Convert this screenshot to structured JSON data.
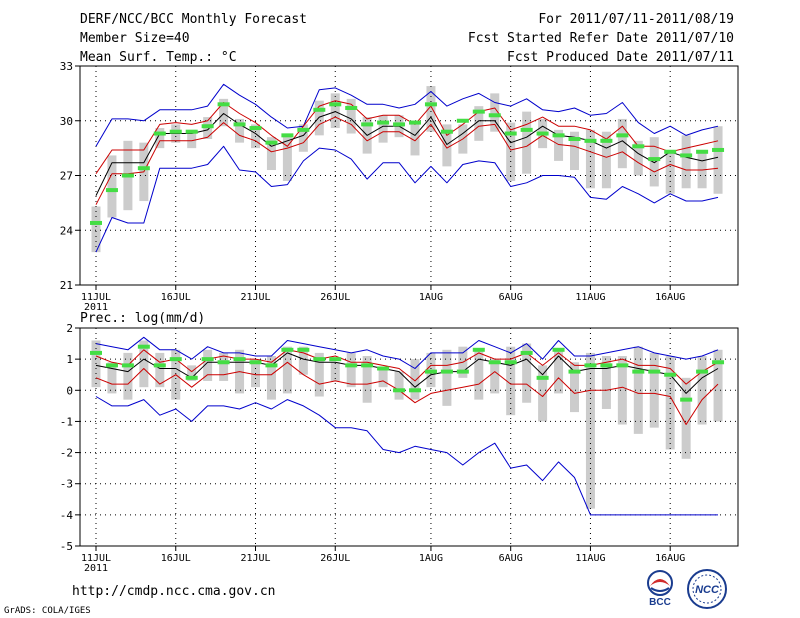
{
  "header": {
    "title": "DERF/NCC/BCC Monthly Forecast",
    "member_size": "Member Size=40",
    "variable": "Mean Surf. Temp.: °C",
    "period": "For 2011/07/11-2011/08/19",
    "fcst_started": "Fcst Started Refer Date 2011/07/10",
    "fcst_produced": "Fcst Produced Date 2011/07/11"
  },
  "footer": {
    "url": "http://cmdp.ncc.cma.gov.cn",
    "credit": "GrADS: COLA/IGES",
    "logo_left_text": "BCC",
    "logo_right_text": "NCC"
  },
  "colors": {
    "ensemble_min_max": "#0000cc",
    "percentile_band": "#cc0000",
    "ensemble_mean": "#000000",
    "ensemble_box": "#cccccc",
    "median_marker": "#44dd44"
  },
  "chart_data": [
    {
      "type": "box-line",
      "title": "Mean Surf. Temp.: °C",
      "ylim": [
        21,
        33
      ],
      "yticks": [
        21,
        24,
        27,
        30,
        33
      ],
      "ytick_labels": [
        "21",
        "24",
        "27",
        "30",
        "33"
      ],
      "xticks": [
        0,
        5,
        10,
        15,
        21,
        26,
        31,
        36
      ],
      "xtick_labels": [
        "11JUL",
        "16JUL",
        "21JUL",
        "26JUL",
        "1AUG",
        "6AUG",
        "11AUG",
        "16AUG"
      ],
      "xtick_sublabel": "2011",
      "grid": true,
      "series": [
        {
          "name": "max",
          "values": [
            28.6,
            30.1,
            30.1,
            30.0,
            30.6,
            30.6,
            30.6,
            30.8,
            32.0,
            31.4,
            30.9,
            30.2,
            29.6,
            29.7,
            31.7,
            31.8,
            31.4,
            30.9,
            30.9,
            30.7,
            30.9,
            31.6,
            30.8,
            31.2,
            31.5,
            31.0,
            30.8,
            31.2,
            30.6,
            30.5,
            30.7,
            30.3,
            30.4,
            31.0,
            29.9,
            29.3,
            29.7,
            29.2,
            29.5,
            29.7
          ]
        },
        {
          "name": "upper",
          "values": [
            27.1,
            28.4,
            28.4,
            28.4,
            29.8,
            29.9,
            29.8,
            30.0,
            31.0,
            30.4,
            29.9,
            29.2,
            28.6,
            29.7,
            30.8,
            31.1,
            30.9,
            30.1,
            30.3,
            30.3,
            29.8,
            30.8,
            29.2,
            29.8,
            30.5,
            30.7,
            29.5,
            29.8,
            30.2,
            29.7,
            29.7,
            29.5,
            29.0,
            29.7,
            28.6,
            28.6,
            28.3,
            28.5,
            28.7,
            28.9
          ]
        },
        {
          "name": "mean",
          "values": [
            25.9,
            27.7,
            27.7,
            27.7,
            29.3,
            29.3,
            29.3,
            29.5,
            30.4,
            29.8,
            29.3,
            28.6,
            28.9,
            29.2,
            30.2,
            30.5,
            30.1,
            29.2,
            29.7,
            29.7,
            29.2,
            30.2,
            28.7,
            29.3,
            30.0,
            30.0,
            28.8,
            29.1,
            29.7,
            29.2,
            29.1,
            28.9,
            28.5,
            28.9,
            28.2,
            27.7,
            28.3,
            28.0,
            27.8,
            28.0
          ]
        },
        {
          "name": "lower",
          "values": [
            25.4,
            27.1,
            27.1,
            27.2,
            28.9,
            28.9,
            28.9,
            29.1,
            29.9,
            29.2,
            28.9,
            28.3,
            28.5,
            28.8,
            29.8,
            30.2,
            29.8,
            28.9,
            29.4,
            29.4,
            28.9,
            29.8,
            28.5,
            29.0,
            29.7,
            29.8,
            28.4,
            28.6,
            29.2,
            28.7,
            28.6,
            28.3,
            28.0,
            28.3,
            27.7,
            27.2,
            27.6,
            27.3,
            27.3,
            27.4
          ]
        },
        {
          "name": "min",
          "values": [
            22.8,
            24.7,
            24.4,
            24.4,
            27.4,
            27.4,
            27.4,
            27.6,
            28.6,
            27.3,
            27.2,
            26.4,
            26.5,
            27.8,
            28.5,
            28.4,
            27.9,
            26.8,
            27.7,
            27.7,
            26.6,
            27.5,
            26.6,
            27.6,
            27.8,
            27.7,
            26.4,
            26.6,
            27.0,
            27.0,
            26.9,
            25.8,
            25.7,
            26.4,
            26.0,
            25.5,
            26.0,
            25.6,
            25.6,
            25.8
          ]
        },
        {
          "name": "box_low",
          "values": [
            22.8,
            24.7,
            25.1,
            25.6,
            28.5,
            28.8,
            28.5,
            29.0,
            29.7,
            28.8,
            28.5,
            27.3,
            26.7,
            28.3,
            29.2,
            29.6,
            29.3,
            28.2,
            28.8,
            29.1,
            28.1,
            29.4,
            27.5,
            28.2,
            28.9,
            29.4,
            26.7,
            27.1,
            28.5,
            27.8,
            27.3,
            26.3,
            26.3,
            27.4,
            27.0,
            26.4,
            26.0,
            26.3,
            26.3,
            26.0
          ]
        },
        {
          "name": "box_high",
          "values": [
            25.3,
            28.1,
            28.9,
            28.8,
            29.6,
            29.8,
            29.5,
            30.2,
            31.2,
            30.1,
            29.8,
            29.1,
            29.1,
            29.8,
            31.1,
            31.5,
            31.2,
            30.2,
            30.3,
            30.3,
            30.0,
            31.9,
            29.8,
            29.8,
            30.8,
            31.5,
            29.9,
            30.5,
            30.1,
            29.5,
            29.4,
            29.5,
            29.4,
            30.1,
            28.9,
            29.1,
            28.4,
            29.2,
            28.4,
            29.7
          ]
        },
        {
          "name": "median",
          "values": [
            24.4,
            26.2,
            27.0,
            27.4,
            29.3,
            29.4,
            29.4,
            29.7,
            30.9,
            29.8,
            29.6,
            28.8,
            29.2,
            29.5,
            30.6,
            30.9,
            30.7,
            29.8,
            29.9,
            29.8,
            29.9,
            30.9,
            29.4,
            30.0,
            30.5,
            30.3,
            29.3,
            29.5,
            29.3,
            29.2,
            29.0,
            28.9,
            28.9,
            29.2,
            28.6,
            27.9,
            28.3,
            28.1,
            28.3,
            28.4
          ]
        }
      ]
    },
    {
      "type": "box-line",
      "title": "Prec.: log(mm/d)",
      "ylim": [
        -5,
        2
      ],
      "yticks": [
        -5,
        -4,
        -3,
        -2,
        -1,
        0,
        1,
        2
      ],
      "ytick_labels": [
        "-5",
        "-4",
        "-3",
        "-2",
        "-1",
        "0",
        "1",
        "2"
      ],
      "xticks": [
        0,
        5,
        10,
        15,
        21,
        26,
        31,
        36
      ],
      "xtick_labels": [
        "11JUL",
        "16JUL",
        "21JUL",
        "26JUL",
        "1AUG",
        "6AUG",
        "11AUG",
        "16AUG"
      ],
      "xtick_sublabel": "2011",
      "grid": true,
      "series": [
        {
          "name": "max",
          "values": [
            1.5,
            1.4,
            1.3,
            1.7,
            1.3,
            1.3,
            1.0,
            1.4,
            1.2,
            1.2,
            1.1,
            1.1,
            1.6,
            1.5,
            1.4,
            1.3,
            1.2,
            1.3,
            1.1,
            1.0,
            0.7,
            1.2,
            1.2,
            1.2,
            1.6,
            1.4,
            1.2,
            1.5,
            1.0,
            1.6,
            1.1,
            1.1,
            1.2,
            1.3,
            1.4,
            1.2,
            1.1,
            1.0,
            1.1,
            1.3
          ]
        },
        {
          "name": "upper",
          "values": [
            1.1,
            0.9,
            0.8,
            1.3,
            0.9,
            1.0,
            0.6,
            1.0,
            1.1,
            1.0,
            1.0,
            0.9,
            1.3,
            1.2,
            1.0,
            1.1,
            0.9,
            0.9,
            0.8,
            0.7,
            0.3,
            0.8,
            0.8,
            0.9,
            1.2,
            1.0,
            1.0,
            1.2,
            0.8,
            1.2,
            0.8,
            0.8,
            0.9,
            1.0,
            0.8,
            0.8,
            0.7,
            0.2,
            0.6,
            0.9
          ]
        },
        {
          "name": "mean",
          "values": [
            0.8,
            0.7,
            0.6,
            1.0,
            0.7,
            0.7,
            0.4,
            0.9,
            0.9,
            0.9,
            0.9,
            0.8,
            1.2,
            1.0,
            0.9,
            0.9,
            0.8,
            0.8,
            0.7,
            0.6,
            0.1,
            0.5,
            0.6,
            0.6,
            1.0,
            0.9,
            0.8,
            1.0,
            0.5,
            1.1,
            0.6,
            0.7,
            0.7,
            0.8,
            0.7,
            0.6,
            0.5,
            -0.1,
            0.4,
            0.7
          ]
        },
        {
          "name": "lower",
          "values": [
            0.4,
            0.2,
            0.2,
            0.7,
            0.2,
            0.5,
            0.1,
            0.5,
            0.5,
            0.6,
            0.5,
            0.5,
            0.9,
            0.5,
            0.2,
            0.3,
            0.2,
            0.2,
            0.3,
            0.0,
            -0.4,
            -0.1,
            0.0,
            0.1,
            0.2,
            0.6,
            0.2,
            0.2,
            -0.2,
            0.4,
            -0.1,
            0.0,
            0.0,
            0.1,
            -0.1,
            -0.1,
            -0.2,
            -1.1,
            -0.3,
            0.2
          ]
        },
        {
          "name": "min",
          "values": [
            -0.2,
            -0.5,
            -0.5,
            -0.3,
            -0.8,
            -0.6,
            -1.0,
            -0.5,
            -0.5,
            -0.6,
            -0.4,
            -0.6,
            -0.3,
            -0.5,
            -0.8,
            -1.2,
            -1.2,
            -1.3,
            -1.9,
            -2.0,
            -1.8,
            -1.9,
            -2.0,
            -2.4,
            -2.0,
            -1.7,
            -2.5,
            -2.4,
            -2.9,
            -2.3,
            -2.8,
            -4.0,
            -4.0,
            -4.0,
            -4.0,
            -4.0,
            -4.0,
            -4.0,
            -4.0,
            -4.0
          ]
        },
        {
          "name": "box_low",
          "values": [
            0.1,
            -0.1,
            -0.3,
            0.1,
            0.1,
            -0.3,
            0.3,
            0.3,
            0.3,
            -0.1,
            0.1,
            -0.3,
            -0.1,
            0.5,
            -0.2,
            0.3,
            0.1,
            -0.4,
            0.1,
            -0.3,
            -0.3,
            0.1,
            -0.5,
            0.4,
            -0.3,
            -0.1,
            -0.8,
            -0.4,
            -1.0,
            -0.1,
            -0.7,
            -3.8,
            -0.6,
            -1.1,
            -1.4,
            -1.2,
            -1.9,
            -2.2,
            -1.1,
            -1.0
          ]
        },
        {
          "name": "box_high",
          "values": [
            1.6,
            0.9,
            1.2,
            1.6,
            1.2,
            1.3,
            0.8,
            1.3,
            1.2,
            1.3,
            1.0,
            1.1,
            1.4,
            1.4,
            1.2,
            0.9,
            1.2,
            1.1,
            0.7,
            0.6,
            1.0,
            1.2,
            1.3,
            1.4,
            1.3,
            1.0,
            1.4,
            1.5,
            0.8,
            1.3,
            0.9,
            1.2,
            1.1,
            1.1,
            1.4,
            1.2,
            1.1,
            0.4,
            1.1,
            1.3
          ]
        },
        {
          "name": "median",
          "values": [
            1.2,
            0.8,
            0.8,
            1.4,
            0.8,
            1.0,
            0.4,
            1.0,
            0.9,
            1.0,
            0.9,
            0.8,
            1.3,
            1.3,
            1.0,
            1.0,
            0.8,
            0.8,
            0.7,
            0.0,
            0.0,
            0.6,
            0.6,
            0.6,
            1.3,
            0.9,
            0.9,
            1.2,
            0.4,
            1.3,
            0.6,
            0.8,
            0.8,
            0.8,
            0.6,
            0.6,
            0.5,
            -0.3,
            0.6,
            0.9
          ]
        }
      ]
    }
  ]
}
